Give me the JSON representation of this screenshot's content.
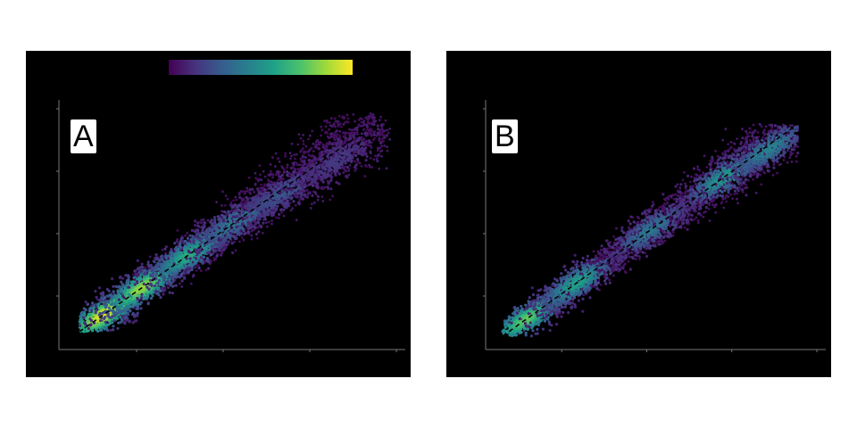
{
  "colors": {
    "background": "#000000",
    "axis": "#777777",
    "diagonal": "#000000",
    "viridis": [
      "#440154",
      "#46327e",
      "#365c8d",
      "#277f8e",
      "#1fa187",
      "#4ac16d",
      "#a0da39",
      "#fde725"
    ]
  },
  "chart_data": [
    {
      "type": "scatter",
      "panel_label": "A",
      "title": "",
      "xlabel": "",
      "ylabel": "",
      "xlim": [
        0,
        100
      ],
      "ylim": [
        0,
        100
      ],
      "grid": false,
      "colormap": "viridis",
      "colorbar": "top",
      "reference_line": {
        "style": "dashed",
        "x": [
          0,
          100
        ],
        "y": [
          0,
          100
        ]
      },
      "density_clusters": [
        {
          "x": 8,
          "y": 8,
          "density": 1.0
        },
        {
          "x": 20,
          "y": 20,
          "density": 0.85
        },
        {
          "x": 35,
          "y": 35,
          "density": 0.6
        },
        {
          "x": 50,
          "y": 50,
          "density": 0.35
        },
        {
          "x": 65,
          "y": 63,
          "density": 0.2
        },
        {
          "x": 82,
          "y": 78,
          "density": 0.1
        }
      ],
      "point_cloud": {
        "x_range": [
          5,
          97
        ],
        "spread": 6
      }
    },
    {
      "type": "scatter",
      "panel_label": "B",
      "title": "",
      "xlabel": "",
      "ylabel": "",
      "xlim": [
        0,
        100
      ],
      "ylim": [
        0,
        100
      ],
      "grid": false,
      "colormap": "viridis",
      "colorbar": "none",
      "reference_line": {
        "style": "dashed",
        "x": [
          0,
          100
        ],
        "y": [
          0,
          100
        ]
      },
      "density_clusters": [
        {
          "x": 8,
          "y": 8,
          "density": 0.75
        },
        {
          "x": 25,
          "y": 25,
          "density": 0.55
        },
        {
          "x": 50,
          "y": 50,
          "density": 0.35
        },
        {
          "x": 75,
          "y": 75,
          "density": 0.5
        },
        {
          "x": 90,
          "y": 88,
          "density": 0.4
        }
      ],
      "point_cloud": {
        "x_range": [
          5,
          98
        ],
        "spread": 5
      }
    }
  ]
}
